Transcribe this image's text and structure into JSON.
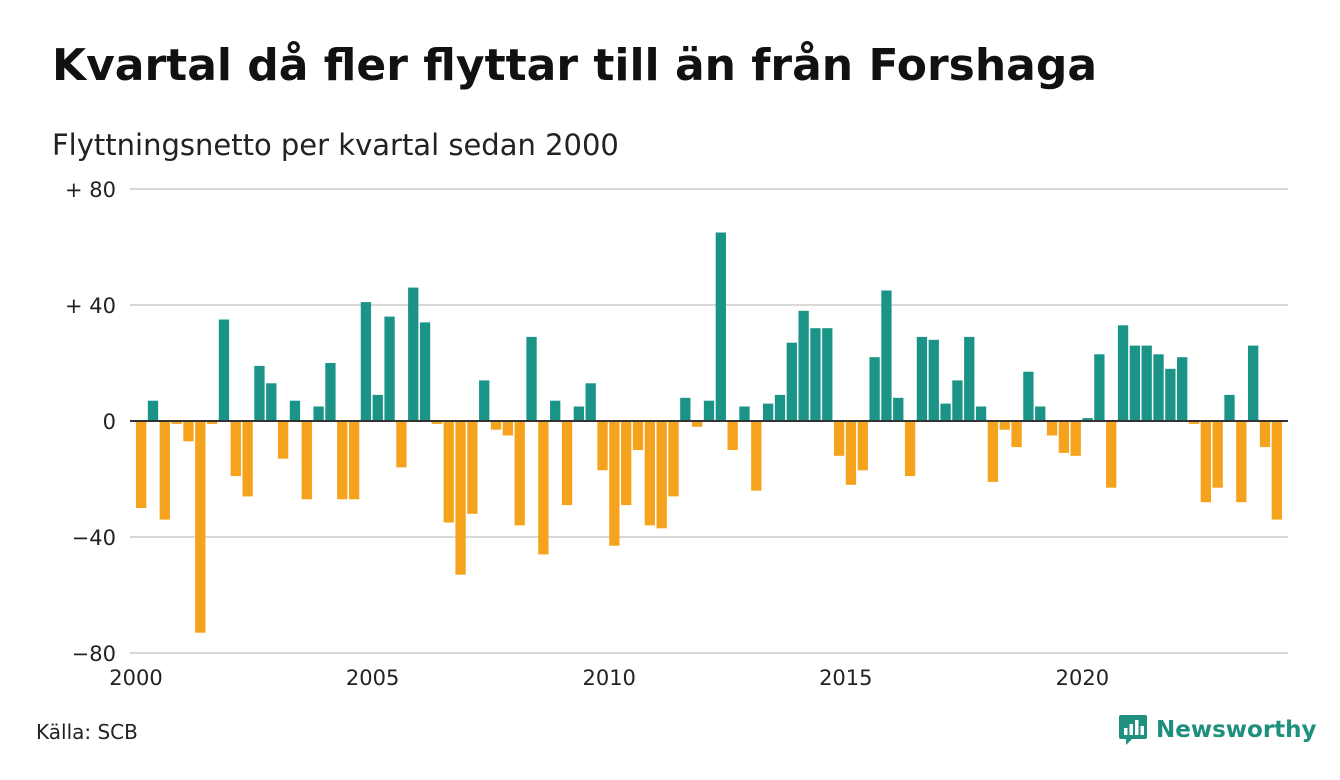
{
  "title": "Kvartal då fler flyttar till än från Forshaga",
  "subtitle": "Flyttningsnetto per kvartal sedan 2000",
  "source": "Källa: SCB",
  "brand": "Newsworthy",
  "colors": {
    "positive": "#1a9486",
    "negative": "#f5a21c",
    "grid": "#d9d9d9",
    "baseline": "#333333",
    "brand": "#1f8f7e"
  },
  "chart_data": {
    "type": "bar",
    "xlabel": "",
    "ylabel": "",
    "ylim": [
      -80,
      80
    ],
    "yticks": [
      {
        "value": 80,
        "label": "+ 80"
      },
      {
        "value": 40,
        "label": "+ 40"
      },
      {
        "value": 0,
        "label": "0"
      },
      {
        "value": -40,
        "label": "−40"
      },
      {
        "value": -80,
        "label": "−80"
      }
    ],
    "xticks": [
      {
        "index": 0,
        "label": "2000"
      },
      {
        "index": 20,
        "label": "2005"
      },
      {
        "index": 40,
        "label": "2010"
      },
      {
        "index": 60,
        "label": "2015"
      },
      {
        "index": 80,
        "label": "2020"
      }
    ],
    "start": "2000 Q1",
    "values": [
      -30,
      7,
      -34,
      -1,
      -7,
      -73,
      -1,
      35,
      -19,
      -26,
      19,
      13,
      -13,
      7,
      -27,
      5,
      20,
      -27,
      -27,
      41,
      9,
      36,
      -16,
      46,
      34,
      -1,
      -35,
      -53,
      -32,
      14,
      -3,
      -5,
      -36,
      29,
      -46,
      7,
      -29,
      5,
      13,
      -17,
      -43,
      -29,
      -10,
      -36,
      -37,
      -26,
      8,
      -2,
      7,
      65,
      -10,
      5,
      -24,
      6,
      9,
      27,
      38,
      32,
      32,
      -12,
      -22,
      -17,
      22,
      45,
      8,
      -19,
      29,
      28,
      6,
      14,
      29,
      5,
      -21,
      -3,
      -9,
      17,
      5,
      -5,
      -11,
      -12,
      1,
      23,
      -23,
      33,
      26,
      26,
      23,
      18,
      22,
      -1,
      -28,
      -23,
      9,
      -28,
      26,
      -9,
      -34
    ]
  }
}
